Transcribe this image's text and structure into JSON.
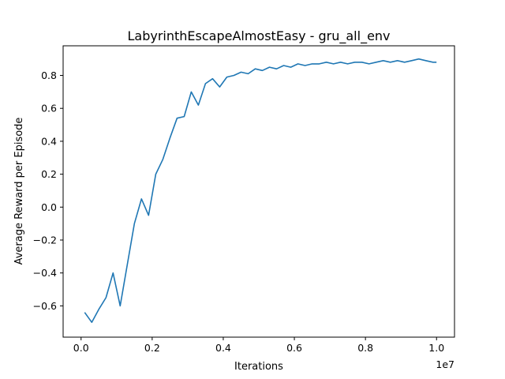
{
  "chart_data": {
    "type": "line",
    "title": "LabyrinthEscapeAlmostEasy - gru_all_env",
    "xlabel": "Iterations",
    "ylabel": "Average Reward per Episode",
    "x_offset_label": "1e7",
    "xlim": [
      -0.0505,
      1.0505
    ],
    "ylim": [
      -0.79,
      0.98
    ],
    "xticks": [
      0.0,
      0.2,
      0.4,
      0.6,
      0.8,
      1.0
    ],
    "xtick_labels": [
      "0.0",
      "0.2",
      "0.4",
      "0.6",
      "0.8",
      "1.0"
    ],
    "yticks": [
      -0.6,
      -0.4,
      -0.2,
      0.0,
      0.2,
      0.4,
      0.6,
      0.8
    ],
    "ytick_labels": [
      "−0.6",
      "−0.4",
      "−0.2",
      "0.0",
      "0.2",
      "0.4",
      "0.6",
      "0.8"
    ],
    "grid": false,
    "color": "#1f77b4",
    "series": [
      {
        "x": [
          0.01,
          0.03,
          0.05,
          0.07,
          0.09,
          0.11,
          0.13,
          0.15,
          0.17,
          0.19,
          0.21,
          0.23,
          0.25,
          0.27,
          0.29,
          0.31,
          0.33,
          0.35,
          0.37,
          0.39,
          0.41,
          0.43,
          0.45,
          0.47,
          0.49,
          0.51,
          0.53,
          0.55,
          0.57,
          0.59,
          0.61,
          0.63,
          0.65,
          0.67,
          0.69,
          0.71,
          0.73,
          0.75,
          0.77,
          0.79,
          0.81,
          0.83,
          0.85,
          0.87,
          0.89,
          0.91,
          0.93,
          0.95,
          0.97,
          0.99,
          1.0
        ],
        "y": [
          -0.64,
          -0.7,
          -0.62,
          -0.55,
          -0.4,
          -0.6,
          -0.35,
          -0.1,
          0.05,
          -0.05,
          0.2,
          0.29,
          0.42,
          0.54,
          0.55,
          0.7,
          0.62,
          0.75,
          0.78,
          0.73,
          0.79,
          0.8,
          0.82,
          0.81,
          0.84,
          0.83,
          0.85,
          0.84,
          0.86,
          0.85,
          0.87,
          0.86,
          0.87,
          0.87,
          0.88,
          0.87,
          0.88,
          0.87,
          0.88,
          0.88,
          0.87,
          0.88,
          0.89,
          0.88,
          0.89,
          0.88,
          0.89,
          0.9,
          0.89,
          0.88,
          0.88
        ]
      }
    ]
  }
}
